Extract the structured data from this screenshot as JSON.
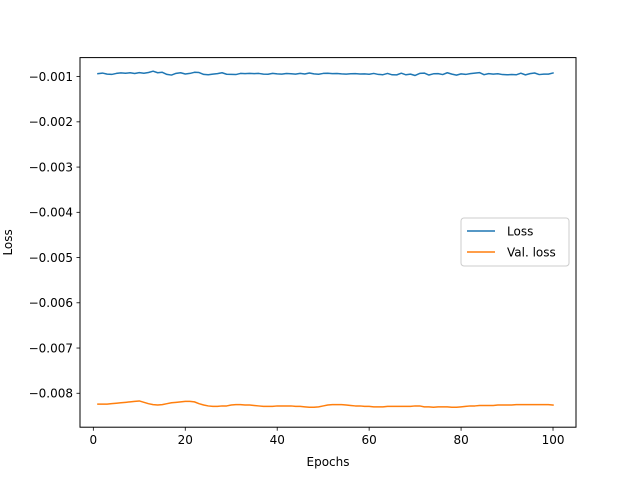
{
  "chart_data": {
    "type": "line",
    "title": "",
    "xlabel": "Epochs",
    "ylabel": "Loss",
    "xlim": [
      -2.9,
      105.0
    ],
    "ylim": [
      -0.00875,
      -0.00058
    ],
    "grid": false,
    "legend_position": "center-right",
    "x_ticks": [
      0,
      20,
      40,
      60,
      80,
      100
    ],
    "x_tick_labels": [
      "0",
      "20",
      "40",
      "60",
      "80",
      "100"
    ],
    "y_ticks": [
      -0.001,
      -0.002,
      -0.003,
      -0.004,
      -0.005,
      -0.006,
      -0.007,
      -0.008
    ],
    "y_tick_labels": [
      "−0.001",
      "−0.002",
      "−0.003",
      "−0.004",
      "−0.005",
      "−0.006",
      "−0.007",
      "−0.008"
    ],
    "x": [
      1,
      2,
      3,
      4,
      5,
      6,
      7,
      8,
      9,
      10,
      11,
      12,
      13,
      14,
      15,
      16,
      17,
      18,
      19,
      20,
      21,
      22,
      23,
      24,
      25,
      26,
      27,
      28,
      29,
      30,
      31,
      32,
      33,
      34,
      35,
      36,
      37,
      38,
      39,
      40,
      41,
      42,
      43,
      44,
      45,
      46,
      47,
      48,
      49,
      50,
      51,
      52,
      53,
      54,
      55,
      56,
      57,
      58,
      59,
      60,
      61,
      62,
      63,
      64,
      65,
      66,
      67,
      68,
      69,
      70,
      71,
      72,
      73,
      74,
      75,
      76,
      77,
      78,
      79,
      80,
      81,
      82,
      83,
      84,
      85,
      86,
      87,
      88,
      89,
      90,
      91,
      92,
      93,
      94,
      95,
      96,
      97,
      98,
      99,
      100
    ],
    "series": [
      {
        "name": "Loss",
        "color": "#1f77b4",
        "values": [
          -0.000935,
          -0.000922,
          -0.000945,
          -0.000952,
          -0.00093,
          -0.000918,
          -0.000927,
          -0.000915,
          -0.000931,
          -0.000912,
          -0.000925,
          -0.00091,
          -0.00088,
          -0.000915,
          -0.000905,
          -0.000952,
          -0.000966,
          -0.000928,
          -0.000915,
          -0.000942,
          -0.00093,
          -0.000905,
          -0.00091,
          -0.000952,
          -0.000958,
          -0.000945,
          -0.000935,
          -0.000915,
          -0.000948,
          -0.00095,
          -0.000955,
          -0.00093,
          -0.000935,
          -0.000928,
          -0.000935,
          -0.00093,
          -0.000945,
          -0.000948,
          -0.000928,
          -0.00094,
          -0.000945,
          -0.000932,
          -0.000937,
          -0.000945,
          -0.000928,
          -0.000942,
          -0.00092,
          -0.00094,
          -0.000948,
          -0.00093,
          -0.000925,
          -0.000935,
          -0.000932,
          -0.00094,
          -0.000945,
          -0.000938,
          -0.000935,
          -0.000942,
          -0.00094,
          -0.000948,
          -0.00093,
          -0.000952,
          -0.000958,
          -0.00093,
          -0.00096,
          -0.000962,
          -0.000925,
          -0.00096,
          -0.000945,
          -0.000975,
          -0.00093,
          -0.000922,
          -0.000965,
          -0.000938,
          -0.000935,
          -0.000955,
          -0.000915,
          -0.000945,
          -0.000968,
          -0.00094,
          -0.000952,
          -0.000935,
          -0.000922,
          -0.000912,
          -0.000958,
          -0.000935,
          -0.000945,
          -0.000938,
          -0.000955,
          -0.00096,
          -0.000955,
          -0.00096,
          -0.000925,
          -0.000962,
          -0.000935,
          -0.00092,
          -0.000955,
          -0.000945,
          -0.000945,
          -0.00092
        ]
      },
      {
        "name": "Val. loss",
        "color": "#ff7f0e",
        "values": [
          -0.00824,
          -0.00824,
          -0.00824,
          -0.00823,
          -0.00822,
          -0.00821,
          -0.0082,
          -0.00819,
          -0.00818,
          -0.00817,
          -0.0082,
          -0.00823,
          -0.00825,
          -0.00826,
          -0.00825,
          -0.00823,
          -0.00821,
          -0.0082,
          -0.00819,
          -0.00818,
          -0.00818,
          -0.00819,
          -0.00823,
          -0.00826,
          -0.00828,
          -0.00829,
          -0.00829,
          -0.00828,
          -0.00828,
          -0.00826,
          -0.00825,
          -0.00825,
          -0.00826,
          -0.00826,
          -0.00827,
          -0.00828,
          -0.00829,
          -0.00829,
          -0.00829,
          -0.00828,
          -0.00828,
          -0.00828,
          -0.00828,
          -0.00829,
          -0.00829,
          -0.0083,
          -0.00831,
          -0.00831,
          -0.0083,
          -0.00828,
          -0.00826,
          -0.00825,
          -0.00825,
          -0.00825,
          -0.00826,
          -0.00827,
          -0.00828,
          -0.00828,
          -0.00829,
          -0.00829,
          -0.0083,
          -0.0083,
          -0.0083,
          -0.00829,
          -0.00829,
          -0.00829,
          -0.00829,
          -0.00829,
          -0.00829,
          -0.00828,
          -0.00828,
          -0.0083,
          -0.0083,
          -0.00831,
          -0.0083,
          -0.0083,
          -0.0083,
          -0.00831,
          -0.00831,
          -0.0083,
          -0.00829,
          -0.00828,
          -0.00828,
          -0.00827,
          -0.00827,
          -0.00827,
          -0.00827,
          -0.00826,
          -0.00826,
          -0.00826,
          -0.00826,
          -0.00825,
          -0.00825,
          -0.00825,
          -0.00825,
          -0.00825,
          -0.00825,
          -0.00825,
          -0.00825,
          -0.00826
        ]
      }
    ]
  }
}
